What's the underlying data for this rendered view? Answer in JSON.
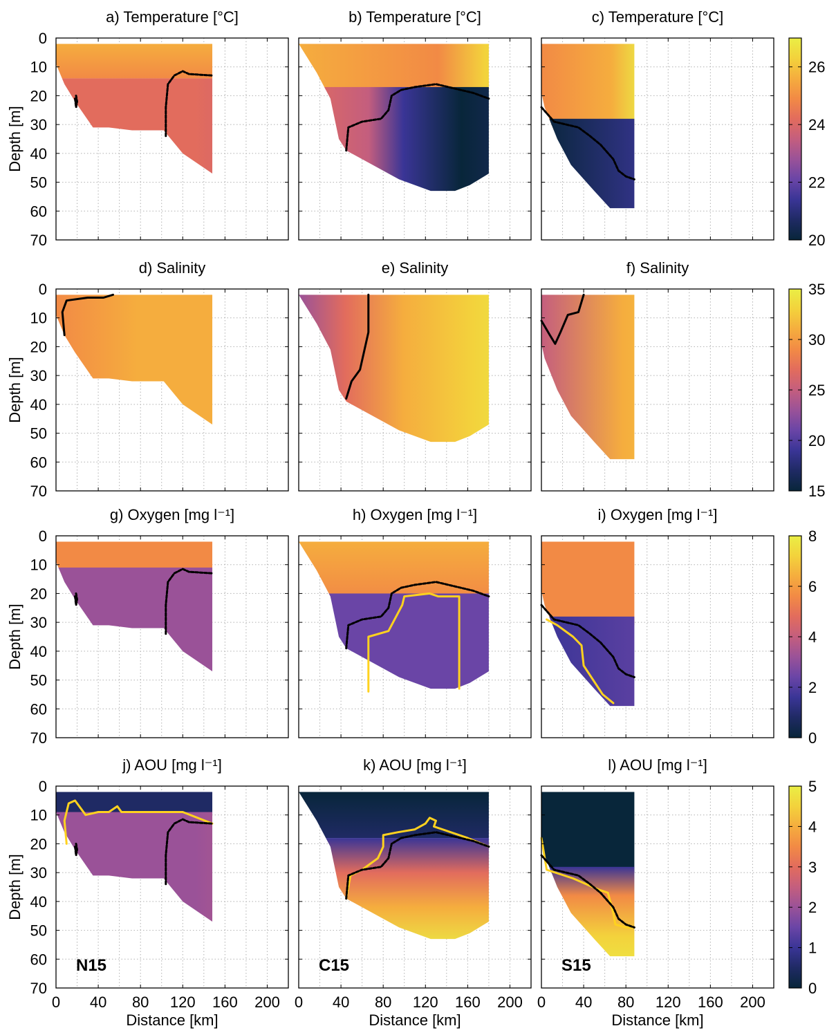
{
  "colors": {
    "cmap": [
      "#08263a",
      "#1f2a64",
      "#3a3596",
      "#6a45a6",
      "#9a5298",
      "#c45e7e",
      "#e26c5d",
      "#f28a45",
      "#f5ad3e",
      "#f3d23c",
      "#eaee45"
    ],
    "contour_black": "#000000",
    "contour_yellow": "#ffd21f",
    "grid": "#b0b0b0"
  },
  "figure": {
    "depth_label": "Depth [m]",
    "distance_label": "Distance [km]",
    "depth_ticks": [
      "0",
      "10",
      "20",
      "30",
      "40",
      "50",
      "60",
      "70"
    ],
    "distance_ticks": [
      "0",
      "40",
      "80",
      "120",
      "160",
      "200"
    ],
    "station_labels": [
      "N15",
      "C15",
      "S15"
    ]
  },
  "chart_data": [
    {
      "type": "heatmap",
      "panel": "a",
      "title": "a) Temperature [°C]",
      "variable": "Temperature",
      "section": "N15",
      "ylabel": "Depth [m]",
      "ylim": [
        0,
        70
      ],
      "xlim": [
        0,
        220
      ],
      "clim": [
        20,
        27
      ],
      "colorbar_ticks": [
        "20",
        "22",
        "24",
        "26"
      ]
    },
    {
      "type": "heatmap",
      "panel": "b",
      "title": "b) Temperature [°C]",
      "variable": "Temperature",
      "section": "C15",
      "clim": [
        20,
        27
      ]
    },
    {
      "type": "heatmap",
      "panel": "c",
      "title": "c) Temperature [°C]",
      "variable": "Temperature",
      "section": "S15",
      "clim": [
        20,
        27
      ]
    },
    {
      "type": "heatmap",
      "panel": "d",
      "title": "d) Salinity",
      "variable": "Salinity",
      "section": "N15",
      "ylabel": "Depth [m]",
      "clim": [
        15,
        35
      ],
      "colorbar_ticks": [
        "15",
        "20",
        "25",
        "30",
        "35"
      ]
    },
    {
      "type": "heatmap",
      "panel": "e",
      "title": "e) Salinity",
      "variable": "Salinity",
      "section": "C15",
      "clim": [
        15,
        35
      ]
    },
    {
      "type": "heatmap",
      "panel": "f",
      "title": "f) Salinity",
      "variable": "Salinity",
      "section": "S15",
      "clim": [
        15,
        35
      ]
    },
    {
      "type": "heatmap",
      "panel": "g",
      "title": "g) Oxygen [mg l⁻¹]",
      "variable": "Oxygen",
      "section": "N15",
      "ylabel": "Depth [m]",
      "clim": [
        0,
        8
      ],
      "colorbar_ticks": [
        "0",
        "2",
        "4",
        "6",
        "8"
      ]
    },
    {
      "type": "heatmap",
      "panel": "h",
      "title": "h) Oxygen [mg l⁻¹]",
      "variable": "Oxygen",
      "section": "C15",
      "clim": [
        0,
        8
      ]
    },
    {
      "type": "heatmap",
      "panel": "i",
      "title": "i) Oxygen [mg l⁻¹]",
      "variable": "Oxygen",
      "section": "S15",
      "clim": [
        0,
        8
      ]
    },
    {
      "type": "heatmap",
      "panel": "j",
      "title": "j) AOU [mg l⁻¹]",
      "variable": "AOU",
      "section": "N15",
      "ylabel": "Depth [m]",
      "xlabel": "Distance [km]",
      "clim": [
        0,
        5
      ],
      "colorbar_ticks": [
        "0",
        "1",
        "2",
        "3",
        "4",
        "5"
      ]
    },
    {
      "type": "heatmap",
      "panel": "k",
      "title": "k) AOU [mg l⁻¹]",
      "variable": "AOU",
      "section": "C15",
      "xlabel": "Distance [km]",
      "clim": [
        0,
        5
      ]
    },
    {
      "type": "heatmap",
      "panel": "l",
      "title": "l) AOU [mg l⁻¹]",
      "variable": "AOU",
      "section": "S15",
      "xlabel": "Distance [km]",
      "clim": [
        0,
        5
      ]
    }
  ]
}
